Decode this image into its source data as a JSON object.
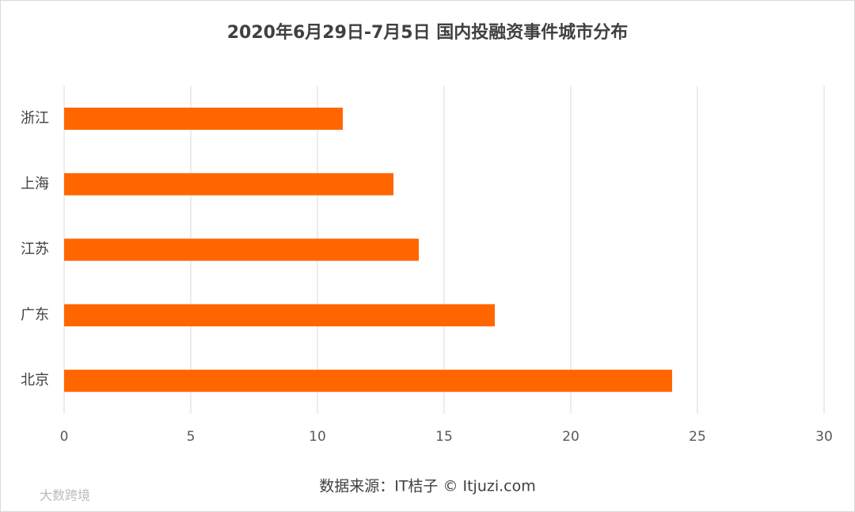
{
  "chart_data": {
    "type": "hbar",
    "title": "2020年6月29日-7月5日 国内投融资事件城市分布",
    "categories": [
      "浙江",
      "上海",
      "江苏",
      "广东",
      "北京"
    ],
    "values": [
      11,
      13,
      14,
      17,
      24
    ],
    "color": "#ff6600",
    "xlim": [
      0,
      30
    ],
    "xticks": [
      0,
      5,
      10,
      15,
      20,
      25,
      30
    ],
    "grid": true,
    "source": "数据来源：IT桔子 © Itjuzi.com",
    "watermark": "大数跨境"
  }
}
